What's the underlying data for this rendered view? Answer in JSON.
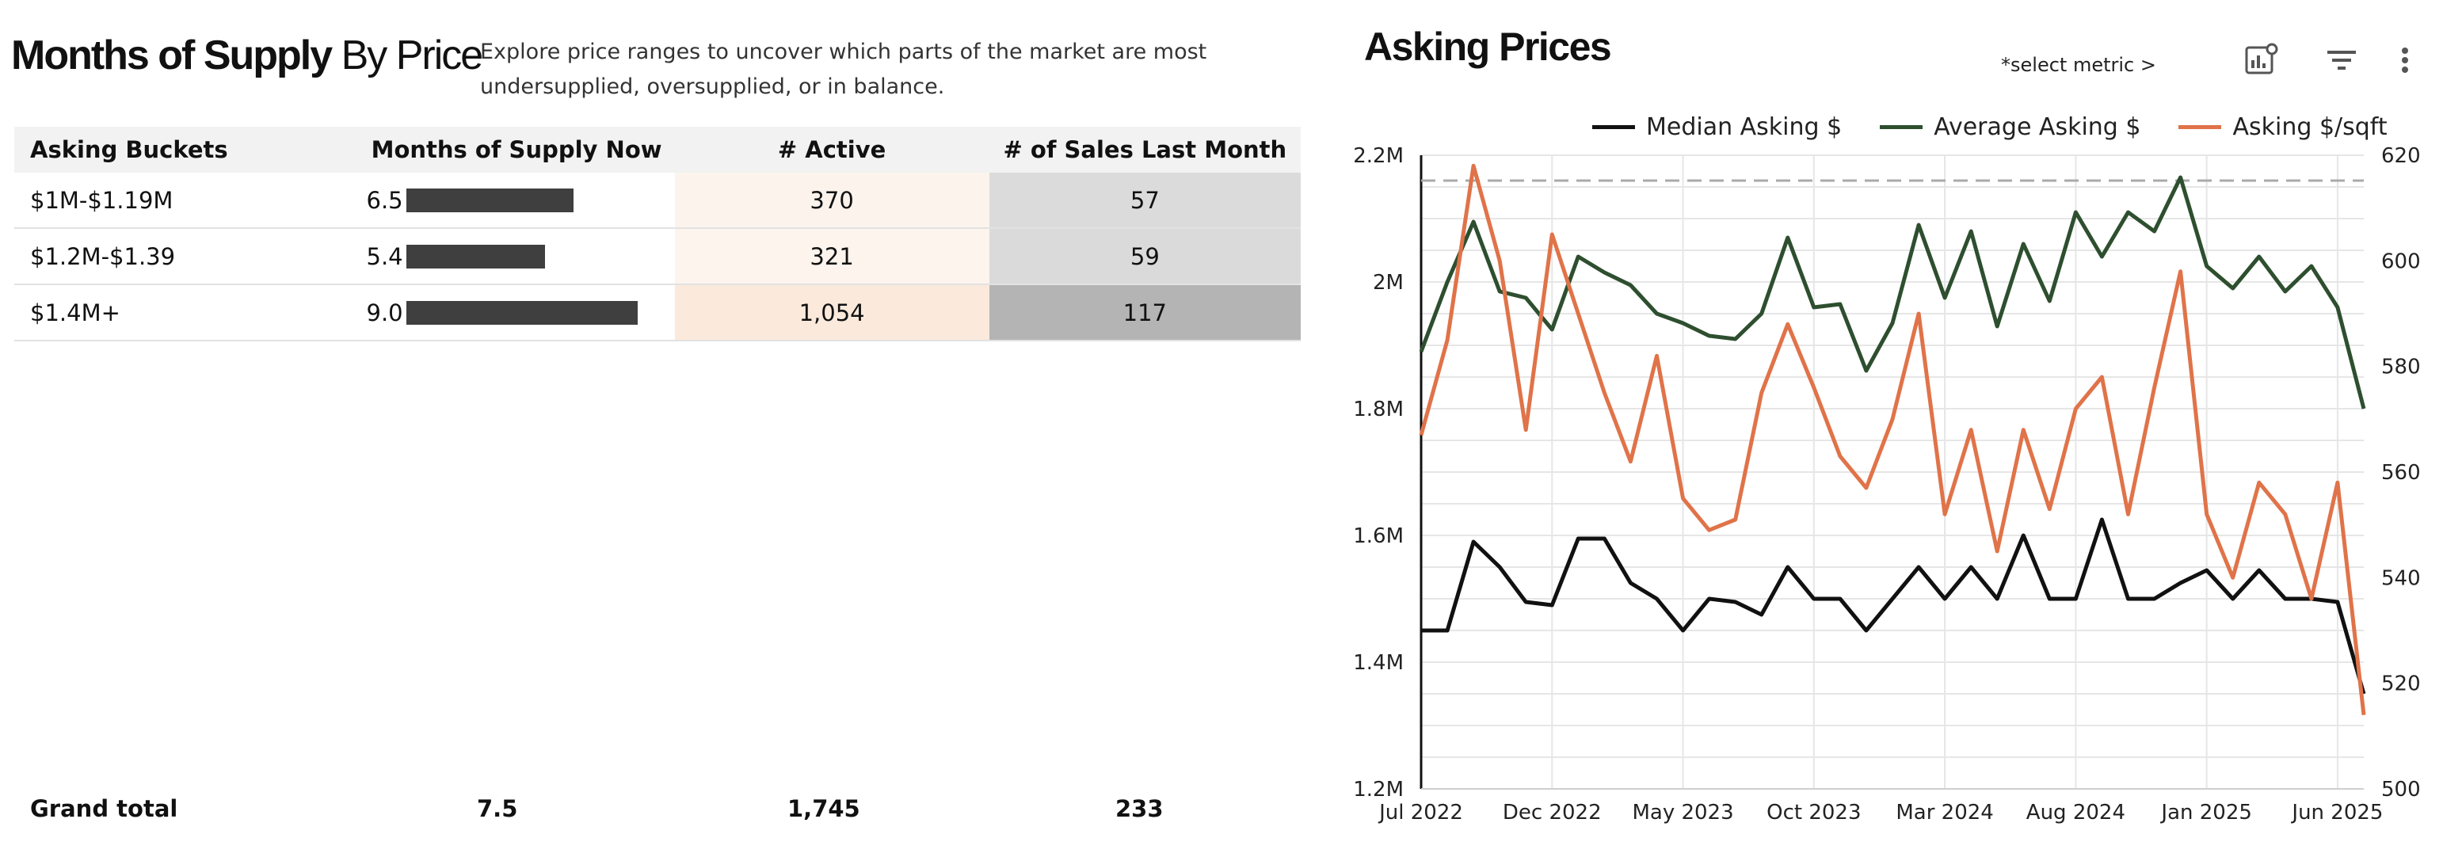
{
  "left": {
    "title_bold": "Months of Supply",
    "title_regular": " By Price",
    "description": "Explore price ranges to uncover which parts of the market are most undersupplied, oversupplied, or in balance.",
    "columns": [
      "Asking Buckets",
      "Months of Supply Now",
      "# Active",
      "# of Sales Last Month"
    ],
    "rows": [
      {
        "bucket": "$1M-$1.19M",
        "months": "6.5",
        "months_value": 6.5,
        "active": "370",
        "active_value": 370,
        "sales": "57",
        "sales_value": 57
      },
      {
        "bucket": "$1.2M-$1.39",
        "months": "5.4",
        "months_value": 5.4,
        "active": "321",
        "active_value": 321,
        "sales": "59",
        "sales_value": 59
      },
      {
        "bucket": "$1.4M+",
        "months": "9.0",
        "months_value": 9.0,
        "active": "1,054",
        "active_value": 1054,
        "sales": "117",
        "sales_value": 117
      }
    ],
    "grand_total": {
      "label": "Grand total",
      "months": "7.5",
      "active": "1,745",
      "sales": "233"
    }
  },
  "right": {
    "title": "Asking Prices",
    "select_metric": "*select metric >",
    "icons": [
      "chart-settings-icon",
      "filter-icon",
      "more-vert-icon"
    ],
    "colors": {
      "median": "#111111",
      "average": "#2e4f2f",
      "sqft": "#e07349",
      "refline": "#aaaaaa"
    }
  },
  "chart_data": {
    "type": "line",
    "title": "Asking Prices",
    "x_ticks": [
      "Jul 2022",
      "Dec 2022",
      "May 2023",
      "Oct 2023",
      "Mar 2024",
      "Aug 2024",
      "Jan 2025",
      "Jun 2025"
    ],
    "x_tick_index": [
      0,
      5,
      10,
      15,
      20,
      25,
      30,
      35
    ],
    "y_left": {
      "ticks": [
        "1.2M",
        "1.4M",
        "1.6M",
        "1.8M",
        "2M",
        "2.2M"
      ],
      "range": [
        1200000,
        2200000
      ]
    },
    "y_right": {
      "ticks": [
        "500",
        "520",
        "540",
        "560",
        "580",
        "600",
        "620"
      ],
      "range": [
        500,
        620
      ]
    },
    "reference_line": 2160000,
    "grid": true,
    "legend_position": "top",
    "series": [
      {
        "name": "Median Asking $",
        "axis": "left",
        "values": [
          1450000,
          1450000,
          1590000,
          1550000,
          1495000,
          1490000,
          1595000,
          1595000,
          1525000,
          1500000,
          1450000,
          1500000,
          1495000,
          1475000,
          1550000,
          1500000,
          1500000,
          1450000,
          1500000,
          1550000,
          1500000,
          1550000,
          1500000,
          1600000,
          1500000,
          1500000,
          1625000,
          1500000,
          1500000,
          1525000,
          1545000,
          1500000,
          1545000,
          1500000,
          1500000,
          1495000,
          1350000
        ]
      },
      {
        "name": "Average Asking $",
        "axis": "left",
        "values": [
          1890000,
          2000000,
          2095000,
          1985000,
          1975000,
          1925000,
          2040000,
          2015000,
          1995000,
          1950000,
          1935000,
          1915000,
          1910000,
          1950000,
          2070000,
          1960000,
          1965000,
          1860000,
          1935000,
          2090000,
          1975000,
          2080000,
          1930000,
          2060000,
          1970000,
          2110000,
          2040000,
          2110000,
          2080000,
          2165000,
          2025000,
          1990000,
          2040000,
          1985000,
          2025000,
          1960000,
          1800000
        ]
      },
      {
        "name": "Asking $/sqft",
        "axis": "right",
        "values": [
          567,
          585,
          618,
          600,
          568,
          605,
          590,
          575,
          562,
          582,
          555,
          549,
          551,
          575,
          588,
          576,
          563,
          557,
          570,
          590,
          552,
          568,
          545,
          568,
          553,
          572,
          578,
          552,
          576,
          598,
          552,
          540,
          558,
          552,
          536,
          558,
          514
        ]
      }
    ]
  }
}
